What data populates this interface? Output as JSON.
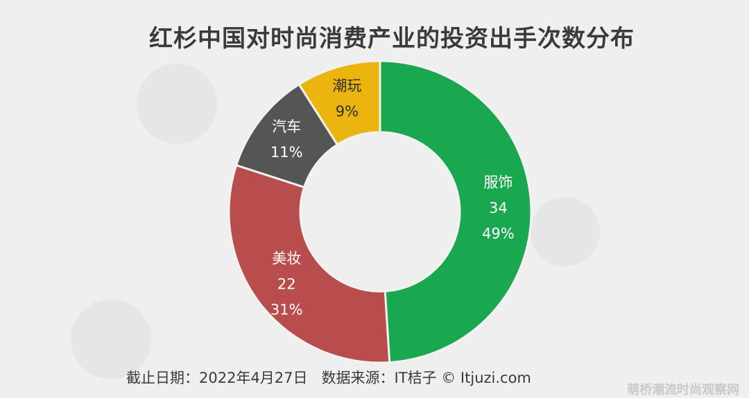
{
  "title": "红杉中国对时尚消费产业的投资出手次数分布",
  "chart_data": {
    "type": "pie",
    "style": "donut",
    "slices": [
      {
        "name": "服饰",
        "count": "34",
        "percent": "49%",
        "value": 49,
        "color": "#19a84f",
        "label_dark": false
      },
      {
        "name": "美妆",
        "count": "22",
        "percent": "31%",
        "value": 31,
        "color": "#b94d4d",
        "label_dark": false
      },
      {
        "name": "汽车",
        "count": "",
        "percent": "11%",
        "value": 11,
        "color": "#555555",
        "label_dark": false
      },
      {
        "name": "潮玩",
        "count": "",
        "percent": "9%",
        "value": 9,
        "color": "#ebb40f",
        "label_dark": true
      }
    ]
  },
  "footer": {
    "date_text": "截止日期：2022年4月27日",
    "source_text": "数据来源：IT桔子 © Itjuzi.com"
  },
  "watermark": "萌桥潮流时尚观察网"
}
